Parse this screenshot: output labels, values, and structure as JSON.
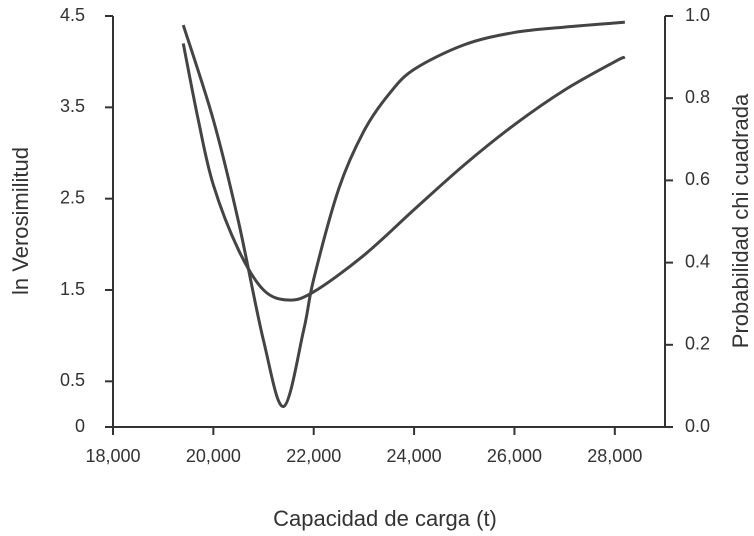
{
  "chart_data": {
    "type": "line",
    "xlabel": "Capacidad de carga (t)",
    "ylabel": "ln Verosimilitud",
    "y2label": "Probabilidad chi cuadrada",
    "xlim": [
      18000,
      29000
    ],
    "xticks": [
      {
        "value": 18000,
        "label": "18,000"
      },
      {
        "value": 20000,
        "label": "20,000"
      },
      {
        "value": 22000,
        "label": "22,000"
      },
      {
        "value": 24000,
        "label": "24,000"
      },
      {
        "value": 26000,
        "label": "26,000"
      },
      {
        "value": 28000,
        "label": "28,000"
      }
    ],
    "ylim": [
      0,
      4.5
    ],
    "yticks": [
      0,
      0.5,
      1.5,
      2.5,
      3.5,
      4.5
    ],
    "y2lim": [
      0,
      1
    ],
    "y2ticks": [
      {
        "value": 0,
        "label": "0.0"
      },
      {
        "value": 0.2,
        "label": "0.2"
      },
      {
        "value": 0.4,
        "label": "0.4"
      },
      {
        "value": 0.6,
        "label": "0.6"
      },
      {
        "value": 0.8,
        "label": "0.8"
      },
      {
        "value": 1,
        "label": "1.0"
      }
    ],
    "series": [
      {
        "color": "#444444",
        "axis": "y2",
        "x": [
          19400,
          20000,
          20500,
          21000,
          21400,
          21800,
          22000,
          22500,
          23000,
          23500,
          24000,
          25000,
          26000,
          27000,
          28000,
          28200
        ],
        "values": [
          0.978,
          0.747,
          0.5,
          0.21,
          0.05,
          0.236,
          0.36,
          0.58,
          0.72,
          0.81,
          0.87,
          0.93,
          0.96,
          0.973,
          0.983,
          0.985
        ]
      },
      {
        "color": "#444444",
        "x": [
          19400,
          19700,
          20000,
          20500,
          21000,
          21500,
          22000,
          23000,
          24000,
          25000,
          26000,
          27000,
          28000,
          28200
        ],
        "values": [
          4.2,
          3.36,
          2.65,
          1.94,
          1.5,
          1.39,
          1.48,
          1.88,
          2.38,
          2.87,
          3.31,
          3.69,
          4.0,
          4.05
        ]
      }
    ]
  }
}
